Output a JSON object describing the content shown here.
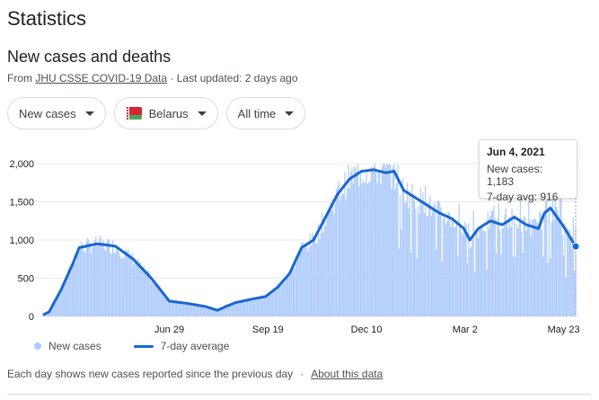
{
  "page": {
    "title": "Statistics"
  },
  "section": {
    "title": "New cases and deaths",
    "source_prefix": "From ",
    "source_link": "JHU CSSE COVID-19 Data",
    "updated": " · Last updated: 2 days ago"
  },
  "filters": {
    "metric": "New cases",
    "region": "Belarus",
    "range": "All time"
  },
  "tooltip": {
    "date": "Jun 4, 2021",
    "cases_text": "New cases: 1,183",
    "avg_text": "7-day avg: 916"
  },
  "legend": {
    "bars_label": "New cases",
    "line_label": "7-day average"
  },
  "footer": {
    "note": "Each day shows new cases reported since the previous day",
    "separator": "·",
    "about_link": "About this data"
  },
  "colors": {
    "bars": "#aecbfa",
    "line": "#1967d2",
    "grid": "#ebebeb"
  },
  "chart_data": {
    "type": "bar",
    "ylim": [
      0,
      2000
    ],
    "y_ticks": [
      0,
      500,
      1000,
      1500,
      2000
    ],
    "y_tick_labels": [
      "0",
      "500",
      "1,000",
      "1,500",
      "2,000"
    ],
    "x_tick_labels": [
      "Jun 29",
      "Sep 19",
      "Dec 10",
      "Mar 2",
      "May 23"
    ],
    "x_tick_days": [
      105,
      187,
      269,
      351,
      433
    ],
    "day_count": 444,
    "series": [
      {
        "name": "New cases",
        "kind": "bar"
      },
      {
        "name": "7-day average",
        "kind": "line"
      }
    ],
    "avg_keypoints": [
      [
        0,
        20
      ],
      [
        5,
        60
      ],
      [
        15,
        350
      ],
      [
        25,
        700
      ],
      [
        30,
        900
      ],
      [
        45,
        950
      ],
      [
        60,
        920
      ],
      [
        75,
        750
      ],
      [
        90,
        500
      ],
      [
        100,
        300
      ],
      [
        105,
        200
      ],
      [
        120,
        170
      ],
      [
        135,
        130
      ],
      [
        145,
        80
      ],
      [
        152,
        130
      ],
      [
        160,
        180
      ],
      [
        175,
        230
      ],
      [
        185,
        260
      ],
      [
        195,
        380
      ],
      [
        205,
        560
      ],
      [
        215,
        900
      ],
      [
        225,
        1000
      ],
      [
        235,
        1300
      ],
      [
        245,
        1600
      ],
      [
        255,
        1800
      ],
      [
        265,
        1900
      ],
      [
        275,
        1920
      ],
      [
        285,
        1880
      ],
      [
        292,
        1900
      ],
      [
        300,
        1650
      ],
      [
        310,
        1550
      ],
      [
        320,
        1450
      ],
      [
        330,
        1350
      ],
      [
        340,
        1280
      ],
      [
        350,
        1150
      ],
      [
        355,
        1000
      ],
      [
        362,
        1150
      ],
      [
        372,
        1250
      ],
      [
        382,
        1200
      ],
      [
        392,
        1300
      ],
      [
        402,
        1200
      ],
      [
        412,
        1150
      ],
      [
        417,
        1350
      ],
      [
        422,
        1420
      ],
      [
        432,
        1200
      ],
      [
        443,
        916
      ]
    ],
    "highlight": {
      "date": "Jun 4, 2021",
      "day": 443,
      "new_cases": 1183,
      "avg": 916
    }
  }
}
